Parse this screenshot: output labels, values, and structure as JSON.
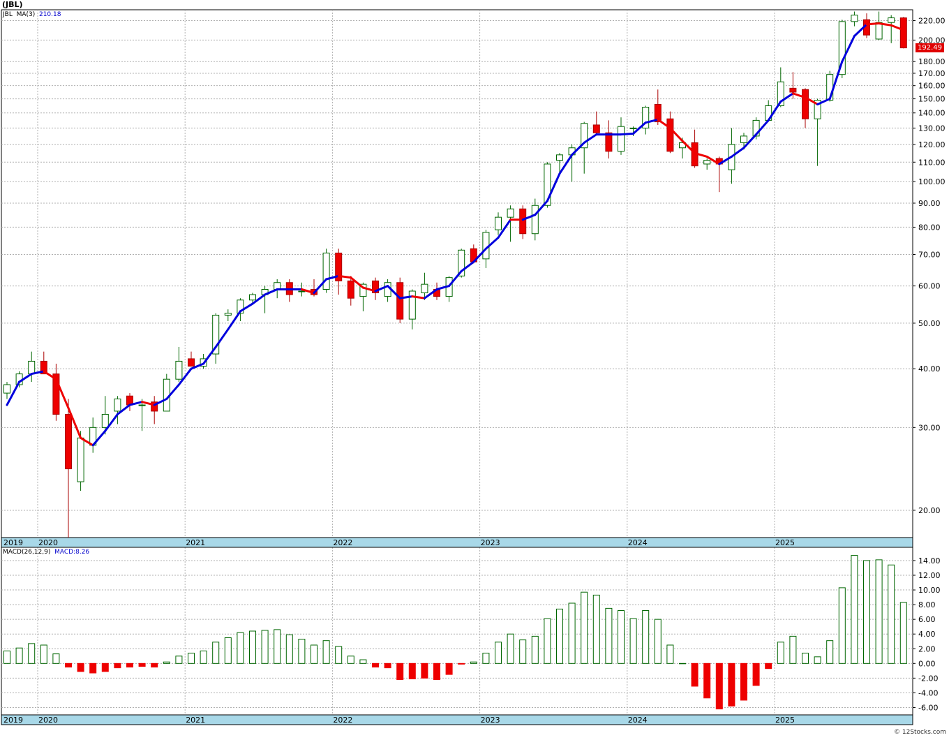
{
  "title": "(JBL)",
  "credit": "© 12Stocks.com",
  "colors": {
    "up": "#ffffff",
    "upStroke": "#006600",
    "down": "#ee0000",
    "downStroke": "#aa0000",
    "maUp": "#0000dd",
    "maDown": "#ee0000",
    "grid": "#b0b0b0",
    "band": "#a8d8e8",
    "histUp": "#006600",
    "histDown": "#ee0000"
  },
  "chart_data": [
    {
      "type": "candlestick",
      "title": "",
      "scale": "log",
      "ylim": [
        17.5,
        232
      ],
      "y_ticks": [
        "20.00",
        "30.00",
        "40.00",
        "50.00",
        "60.00",
        "70.00",
        "80.00",
        "90.00",
        "100.00",
        "110.00",
        "120.00",
        "130.00",
        "140.00",
        "150.00",
        "160.00",
        "170.00",
        "180.00",
        "200.00",
        "220.00"
      ],
      "x_labels": [
        "2019",
        "2020",
        "2021",
        "2022",
        "2023",
        "2024",
        "2025"
      ],
      "legend": {
        "symbol": "JBL",
        "ma_label": "MA(3)",
        "ma_value": "210.18"
      },
      "last_price": "192.49",
      "candles": [
        {
          "o": 35.5,
          "h": 37.5,
          "l": 34.5,
          "c": 37.0
        },
        {
          "o": 37.0,
          "h": 39.5,
          "l": 36.5,
          "c": 39.0
        },
        {
          "o": 39.0,
          "h": 43.5,
          "l": 37.5,
          "c": 41.5
        },
        {
          "o": 41.5,
          "h": 43.5,
          "l": 39.0,
          "c": 39.0
        },
        {
          "o": 39.0,
          "h": 41.0,
          "l": 31.0,
          "c": 32.0
        },
        {
          "o": 32.0,
          "h": 34.5,
          "l": 17.5,
          "c": 24.5
        },
        {
          "o": 23.0,
          "h": 29.5,
          "l": 22.0,
          "c": 28.5
        },
        {
          "o": 27.5,
          "h": 31.5,
          "l": 26.5,
          "c": 30.0
        },
        {
          "o": 30.0,
          "h": 35.0,
          "l": 29.0,
          "c": 32.0
        },
        {
          "o": 32.5,
          "h": 35.0,
          "l": 30.5,
          "c": 34.5
        },
        {
          "o": 35.0,
          "h": 35.5,
          "l": 32.5,
          "c": 33.5
        },
        {
          "o": 33.5,
          "h": 34.5,
          "l": 29.5,
          "c": 33.5
        },
        {
          "o": 34.0,
          "h": 35.0,
          "l": 30.5,
          "c": 32.5
        },
        {
          "o": 32.5,
          "h": 39.0,
          "l": 32.5,
          "c": 38.0
        },
        {
          "o": 38.0,
          "h": 44.5,
          "l": 37.5,
          "c": 41.5
        },
        {
          "o": 42.0,
          "h": 43.5,
          "l": 40.5,
          "c": 40.5
        },
        {
          "o": 40.5,
          "h": 43.0,
          "l": 40.0,
          "c": 42.0
        },
        {
          "o": 43.0,
          "h": 52.5,
          "l": 41.0,
          "c": 52.0
        },
        {
          "o": 52.0,
          "h": 53.5,
          "l": 50.5,
          "c": 52.5
        },
        {
          "o": 52.5,
          "h": 56.5,
          "l": 50.5,
          "c": 56.0
        },
        {
          "o": 56.0,
          "h": 58.0,
          "l": 55.0,
          "c": 57.5
        },
        {
          "o": 57.5,
          "h": 60.0,
          "l": 52.5,
          "c": 59.0
        },
        {
          "o": 59.0,
          "h": 62.0,
          "l": 56.5,
          "c": 61.0
        },
        {
          "o": 61.0,
          "h": 62.0,
          "l": 55.5,
          "c": 57.5
        },
        {
          "o": 58.5,
          "h": 61.0,
          "l": 57.0,
          "c": 58.5
        },
        {
          "o": 59.0,
          "h": 62.0,
          "l": 57.0,
          "c": 57.5
        },
        {
          "o": 59.0,
          "h": 72.0,
          "l": 58.0,
          "c": 70.5
        },
        {
          "o": 70.5,
          "h": 72.0,
          "l": 57.5,
          "c": 61.5
        },
        {
          "o": 61.5,
          "h": 63.0,
          "l": 54.5,
          "c": 56.5
        },
        {
          "o": 57.0,
          "h": 61.0,
          "l": 53.0,
          "c": 60.5
        },
        {
          "o": 61.5,
          "h": 62.5,
          "l": 56.0,
          "c": 58.0
        },
        {
          "o": 57.0,
          "h": 62.0,
          "l": 55.5,
          "c": 61.0
        },
        {
          "o": 61.0,
          "h": 62.5,
          "l": 50.0,
          "c": 51.0
        },
        {
          "o": 51.0,
          "h": 59.0,
          "l": 48.5,
          "c": 58.5
        },
        {
          "o": 58.0,
          "h": 64.0,
          "l": 56.0,
          "c": 60.5
        },
        {
          "o": 59.0,
          "h": 61.0,
          "l": 56.0,
          "c": 57.0
        },
        {
          "o": 57.0,
          "h": 63.0,
          "l": 55.5,
          "c": 62.5
        },
        {
          "o": 63.0,
          "h": 72.0,
          "l": 62.5,
          "c": 71.5
        },
        {
          "o": 72.0,
          "h": 73.5,
          "l": 67.0,
          "c": 67.5
        },
        {
          "o": 68.5,
          "h": 79.0,
          "l": 65.5,
          "c": 78.0
        },
        {
          "o": 79.0,
          "h": 86.0,
          "l": 77.0,
          "c": 84.0
        },
        {
          "o": 84.0,
          "h": 89.0,
          "l": 74.5,
          "c": 87.5
        },
        {
          "o": 87.5,
          "h": 89.0,
          "l": 75.5,
          "c": 77.5
        },
        {
          "o": 77.5,
          "h": 92.0,
          "l": 75.0,
          "c": 89.0
        },
        {
          "o": 89.0,
          "h": 110.0,
          "l": 88.0,
          "c": 109.0
        },
        {
          "o": 111.0,
          "h": 115.0,
          "l": 104.0,
          "c": 114.0
        },
        {
          "o": 114.0,
          "h": 120.0,
          "l": 100.0,
          "c": 118.0
        },
        {
          "o": 118.0,
          "h": 134.0,
          "l": 104.0,
          "c": 133.0
        },
        {
          "o": 132.0,
          "h": 141.0,
          "l": 126.0,
          "c": 127.0
        },
        {
          "o": 127.0,
          "h": 135.0,
          "l": 112.0,
          "c": 116.0
        },
        {
          "o": 116.0,
          "h": 137.0,
          "l": 114.0,
          "c": 131.0
        },
        {
          "o": 130.0,
          "h": 131.0,
          "l": 125.0,
          "c": 130.0
        },
        {
          "o": 130.0,
          "h": 145.0,
          "l": 126.0,
          "c": 144.0
        },
        {
          "o": 146.0,
          "h": 157.0,
          "l": 132.0,
          "c": 134.0
        },
        {
          "o": 136.0,
          "h": 141.0,
          "l": 115.0,
          "c": 116.0
        },
        {
          "o": 118.0,
          "h": 124.0,
          "l": 112.0,
          "c": 121.0
        },
        {
          "o": 121.0,
          "h": 129.0,
          "l": 107.0,
          "c": 108.0
        },
        {
          "o": 109.0,
          "h": 112.0,
          "l": 106.0,
          "c": 111.0
        },
        {
          "o": 112.0,
          "h": 113.0,
          "l": 95.0,
          "c": 109.0
        },
        {
          "o": 106.0,
          "h": 130.0,
          "l": 99.0,
          "c": 120.0
        },
        {
          "o": 121.0,
          "h": 127.0,
          "l": 117.0,
          "c": 125.0
        },
        {
          "o": 125.0,
          "h": 137.0,
          "l": 123.0,
          "c": 135.0
        },
        {
          "o": 135.0,
          "h": 149.0,
          "l": 134.0,
          "c": 145.0
        },
        {
          "o": 145.0,
          "h": 175.0,
          "l": 144.0,
          "c": 163.0
        },
        {
          "o": 158.0,
          "h": 171.0,
          "l": 150.0,
          "c": 155.0
        },
        {
          "o": 157.0,
          "h": 158.0,
          "l": 130.0,
          "c": 136.0
        },
        {
          "o": 136.0,
          "h": 150.0,
          "l": 108.0,
          "c": 149.0
        },
        {
          "o": 149.0,
          "h": 172.0,
          "l": 148.0,
          "c": 169.0
        },
        {
          "o": 169.0,
          "h": 221.0,
          "l": 166.0,
          "c": 219.0
        },
        {
          "o": 219.0,
          "h": 230.0,
          "l": 214.0,
          "c": 226.0
        },
        {
          "o": 221.0,
          "h": 228.0,
          "l": 202.0,
          "c": 205.0
        },
        {
          "o": 201.0,
          "h": 230.0,
          "l": 200.0,
          "c": 218.0
        },
        {
          "o": 218.0,
          "h": 226.0,
          "l": 197.0,
          "c": 223.0
        },
        {
          "o": 223.0,
          "h": 224.0,
          "l": 192.0,
          "c": 192.5
        }
      ],
      "ma": [
        33.5,
        37.5,
        39.0,
        39.5,
        38.0,
        33.0,
        28.5,
        27.5,
        29.5,
        32.0,
        33.5,
        34.0,
        33.5,
        34.5,
        37.0,
        40.0,
        41.0,
        44.5,
        48.5,
        53.0,
        55.0,
        57.5,
        59.0,
        59.0,
        59.0,
        58.0,
        62.0,
        63.0,
        62.5,
        59.5,
        58.5,
        60.0,
        56.5,
        57.0,
        56.5,
        59.0,
        60.0,
        64.5,
        67.5,
        72.0,
        76.0,
        83.0,
        83.0,
        85.0,
        91.0,
        104.0,
        114.0,
        121.0,
        126.0,
        126.0,
        126.0,
        126.5,
        133.5,
        135.5,
        130.0,
        122.0,
        115.0,
        113.0,
        109.0,
        113.0,
        118.0,
        126.0,
        135.0,
        148.0,
        154.0,
        151.0,
        146.0,
        150.0,
        180.0,
        204.0,
        216.0,
        217.0,
        215.0,
        210.0
      ],
      "ma_color": [
        "up",
        "up",
        "up",
        "up",
        "down",
        "down",
        "down",
        "down",
        "up",
        "up",
        "up",
        "up",
        "down",
        "up",
        "up",
        "up",
        "up",
        "up",
        "up",
        "up",
        "up",
        "up",
        "up",
        "up",
        "up",
        "down",
        "up",
        "up",
        "down",
        "down",
        "down",
        "up",
        "up",
        "up",
        "down",
        "up",
        "up",
        "up",
        "up",
        "up",
        "up",
        "up",
        "down",
        "up",
        "up",
        "up",
        "up",
        "up",
        "up",
        "up",
        "up",
        "up",
        "up",
        "up",
        "down",
        "down",
        "down",
        "down",
        "down",
        "up",
        "up",
        "up",
        "up",
        "up",
        "up",
        "down",
        "down",
        "up",
        "up",
        "up",
        "up",
        "down",
        "down",
        "down"
      ]
    },
    {
      "type": "bar",
      "title": "",
      "ylim": [
        -7,
        15.8
      ],
      "y_ticks": [
        "14.00",
        "12.00",
        "10.00",
        "8.00",
        "6.00",
        "4.00",
        "2.00",
        "0.00",
        "-2.00",
        "-4.00",
        "-6.00"
      ],
      "x_labels": [
        "2019",
        "2020",
        "2021",
        "2022",
        "2023",
        "2024",
        "2025"
      ],
      "legend": {
        "label": "MACD(26,12,9)",
        "value_label": "MACD:8.26"
      },
      "values": [
        1.7,
        2.1,
        2.7,
        2.5,
        1.3,
        -0.5,
        -1.1,
        -1.3,
        -1.1,
        -0.6,
        -0.5,
        -0.4,
        -0.5,
        0.2,
        1.0,
        1.4,
        1.7,
        2.9,
        3.5,
        4.2,
        4.4,
        4.5,
        4.6,
        3.9,
        3.3,
        2.5,
        3.1,
        2.3,
        1.0,
        0.5,
        -0.5,
        -0.6,
        -2.2,
        -2.1,
        -2.0,
        -2.2,
        -1.5,
        -0.1,
        0.2,
        1.4,
        2.9,
        4.0,
        3.2,
        3.7,
        6.1,
        7.4,
        8.2,
        9.7,
        9.3,
        7.5,
        7.2,
        6.1,
        7.2,
        6.0,
        2.5,
        0.0,
        -3.1,
        -4.7,
        -6.2,
        -5.8,
        -5.0,
        -3.0,
        -0.7,
        2.9,
        3.7,
        1.4,
        0.9,
        3.1,
        10.3,
        14.7,
        14.0,
        14.1,
        13.4,
        8.3
      ]
    }
  ]
}
